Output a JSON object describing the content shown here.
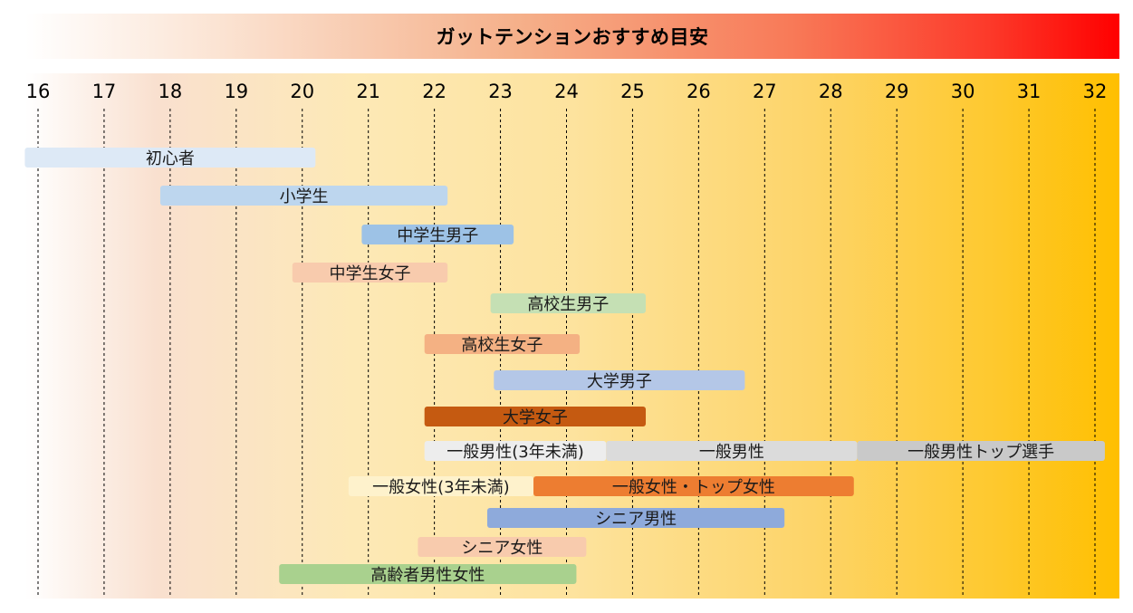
{
  "title": "ガットテンションおすすめ目安",
  "colors": {
    "title_gradient_end": "#ff0000",
    "plot_gradient_end": "#ffbf00"
  },
  "chart_data": {
    "type": "bar",
    "orientation": "horizontal-range",
    "x_ticks": [
      16,
      17,
      18,
      19,
      20,
      21,
      22,
      23,
      24,
      25,
      26,
      27,
      28,
      29,
      30,
      31,
      32
    ],
    "xlim": [
      16,
      32
    ],
    "grid": "vertical dashed",
    "rows": [
      [
        {
          "label": "初心者",
          "start": 15.8,
          "end": 20.2,
          "color": "#dde9f6"
        }
      ],
      [
        {
          "label": "小学生",
          "start": 17.85,
          "end": 22.2,
          "color": "#bdd6ee"
        }
      ],
      [
        {
          "label": "中学生男子",
          "start": 20.9,
          "end": 23.2,
          "color": "#9dc2e6"
        }
      ],
      [
        {
          "label": "中学生女子",
          "start": 19.85,
          "end": 22.2,
          "color": "#f8cbad"
        }
      ],
      [
        {
          "label": "高校生男子",
          "start": 22.85,
          "end": 25.2,
          "color": "#c5e0b4"
        }
      ],
      [
        {
          "label": "高校生女子",
          "start": 21.85,
          "end": 24.2,
          "color": "#f4b183"
        }
      ],
      [
        {
          "label": "大学男子",
          "start": 22.9,
          "end": 26.7,
          "color": "#b4c7e7"
        }
      ],
      [
        {
          "label": "大学女子",
          "start": 21.85,
          "end": 25.2,
          "color": "#c55a11"
        }
      ],
      [
        {
          "label": "一般男性(3年未満)",
          "start": 21.85,
          "end": 24.6,
          "color": "#ededed"
        },
        {
          "label": "一般男性",
          "start": 24.6,
          "end": 28.4,
          "color": "#dbdbdb"
        },
        {
          "label": "一般男性トップ選手",
          "start": 28.4,
          "end": 32.15,
          "color": "#c9c9c9"
        }
      ],
      [
        {
          "label": "一般女性(3年未満)",
          "start": 20.7,
          "end": 23.5,
          "color": "#fef2cc"
        },
        {
          "label": "一般女性・トップ女性",
          "start": 23.5,
          "end": 28.35,
          "color": "#ed7d31"
        }
      ],
      [
        {
          "label": "シニア男性",
          "start": 22.8,
          "end": 27.3,
          "color": "#8eaadb"
        }
      ],
      [
        {
          "label": "シニア女性",
          "start": 21.75,
          "end": 24.3,
          "color": "#f8cbad"
        }
      ],
      [
        {
          "label": "高齢者男性女性",
          "start": 19.65,
          "end": 24.15,
          "color": "#a9d18e"
        }
      ]
    ]
  }
}
